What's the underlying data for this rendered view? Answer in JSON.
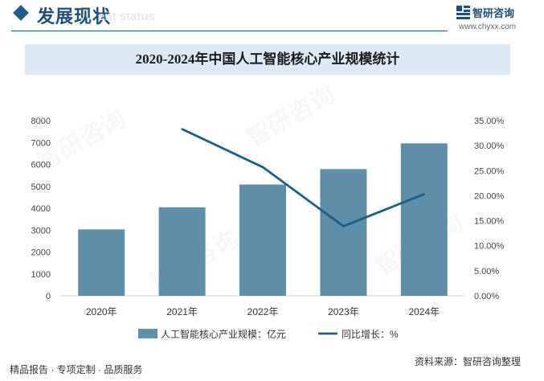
{
  "header": {
    "title": "发展现状",
    "subtitle": "ent status"
  },
  "brand": {
    "name": "智研咨询",
    "url": "www.chyxx.com"
  },
  "watermark_text": "智研咨询",
  "chart_data": {
    "type": "bar",
    "title": "2020-2024年中国人工智能核心产业规模统计",
    "categories": [
      "2020年",
      "2021年",
      "2022年",
      "2023年",
      "2024年"
    ],
    "series": [
      {
        "name": "人工智能核心产业规模：亿元",
        "type": "bar",
        "axis": "left",
        "values": [
          3031,
          4041,
          5080,
          5784,
          6960
        ]
      },
      {
        "name": "同比增长：%",
        "type": "line",
        "axis": "right",
        "values": [
          null,
          33.3,
          25.7,
          13.9,
          20.3
        ]
      }
    ],
    "y_left": {
      "min": 0,
      "max": 8000,
      "step": 1000
    },
    "y_right": {
      "min": 0,
      "max": 35,
      "step": 5
    },
    "y_right_ticks": [
      "0.00%",
      "5.00%",
      "10.00%",
      "15.00%",
      "20.00%",
      "25.00%",
      "30.00%",
      "35.00%"
    ],
    "y_left_ticks": [
      "0",
      "1000",
      "2000",
      "3000",
      "4000",
      "5000",
      "6000",
      "7000",
      "8000"
    ],
    "legend_position": "bottom",
    "grid": false,
    "colors": {
      "bar": "#5e8fa8",
      "line": "#1b5e82"
    }
  },
  "footer": {
    "left": "精品报告 · 专项定制 · 品质服务",
    "source": "资料来源：智研咨询整理"
  }
}
